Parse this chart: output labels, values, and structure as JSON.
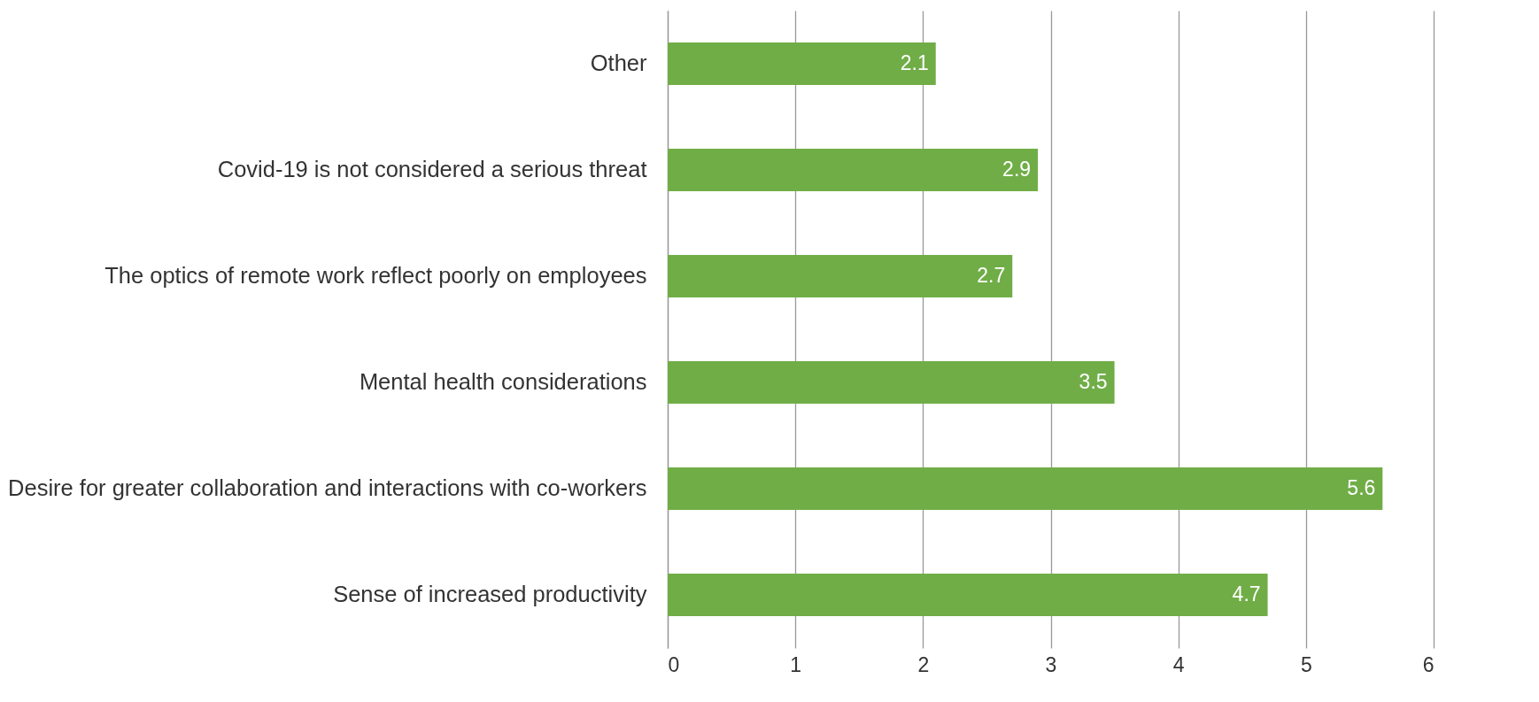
{
  "chart_data": {
    "type": "bar",
    "orientation": "horizontal",
    "categories": [
      "Other",
      "Covid-19 is not considered a serious threat",
      "The optics of remote work reflect poorly on employees",
      "Mental health considerations",
      "Desire for greater collaboration and interactions with co-workers",
      "Sense of increased productivity"
    ],
    "values": [
      2.1,
      2.9,
      2.7,
      3.5,
      5.6,
      4.7
    ],
    "color": "#70ad47",
    "xlim": [
      0,
      6
    ],
    "xticks": [
      0,
      1,
      2,
      3,
      4,
      5,
      6
    ],
    "grid": "x",
    "data_labels": true
  }
}
